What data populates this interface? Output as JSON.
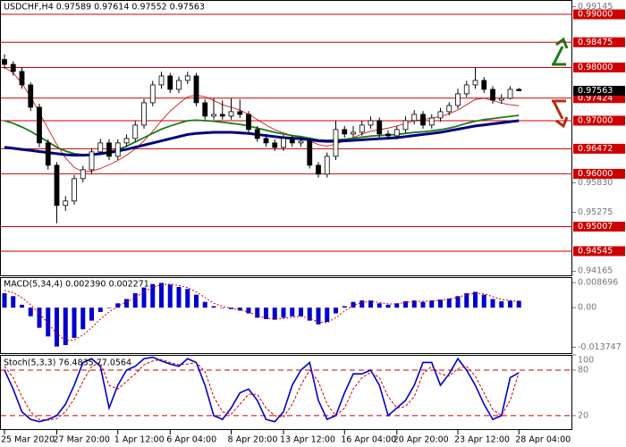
{
  "chart_data": [
    {
      "type": "candlestick",
      "title": "USDCHF,H4  0.97589 0.97614 0.97552 0.97563",
      "categories": [
        "25 Mar 2020",
        null,
        null,
        null,
        null,
        null,
        "27 Mar 20:00",
        null,
        null,
        null,
        null,
        null,
        null,
        "1 Apr 12:00",
        null,
        null,
        null,
        null,
        null,
        "6 Apr 04:00",
        null,
        null,
        null,
        null,
        null,
        null,
        "8 Apr 20:00",
        null,
        null,
        null,
        null,
        null,
        "13 Apr 12:00",
        null,
        null,
        null,
        null,
        null,
        null,
        "16 Apr 04:00",
        null,
        null,
        null,
        null,
        null,
        "20 Apr 20:00",
        null,
        null,
        null,
        null,
        null,
        null,
        "23 Apr 12:00",
        null,
        null,
        null,
        null,
        null,
        null,
        "28 Apr 04:00"
      ],
      "open": [
        0.9815,
        0.98059,
        0.97925,
        0.97673,
        0.97253,
        0.96581,
        0.96161,
        0.95405,
        0.95489,
        0.95909,
        0.96077,
        0.96413,
        0.96581,
        0.96329,
        0.96581,
        0.96665,
        0.96917,
        0.97337,
        0.97673,
        0.97841,
        0.97589,
        0.97757,
        0.97841,
        0.97337,
        0.97085,
        0.97118,
        0.97085,
        0.97169,
        0.97118,
        0.96833,
        0.96665,
        0.96581,
        0.96497,
        0.96665,
        0.96581,
        0.96614,
        0.96161,
        0.95993,
        0.96329,
        0.96833,
        0.96749,
        0.96782,
        0.96917,
        0.97001,
        0.96749,
        0.96715,
        0.96833,
        0.97001,
        0.97118,
        0.96917,
        0.97051,
        0.97169,
        0.97286,
        0.97505,
        0.97673,
        0.97757,
        0.97589,
        0.97387,
        0.97421,
        0.97589
      ],
      "high": [
        0.9825,
        0.9812,
        0.98,
        0.9772,
        0.9732,
        0.9665,
        0.9622,
        0.9558,
        0.9598,
        0.9615,
        0.9648,
        0.9666,
        0.9665,
        0.9665,
        0.9674,
        0.9699,
        0.9741,
        0.9775,
        0.9792,
        0.979,
        0.9783,
        0.9792,
        0.979,
        0.974,
        0.9742,
        0.9738,
        0.9742,
        0.974,
        0.9718,
        0.969,
        0.9673,
        0.9665,
        0.9673,
        0.9673,
        0.9669,
        0.9668,
        0.9622,
        0.964,
        0.97,
        0.969,
        0.969,
        0.97,
        0.9708,
        0.9706,
        0.9682,
        0.969,
        0.9708,
        0.972,
        0.9718,
        0.9712,
        0.9724,
        0.9735,
        0.976,
        0.9775,
        0.98,
        0.9782,
        0.9765,
        0.975,
        0.9765,
        0.97614
      ],
      "low": [
        0.9798,
        0.9785,
        0.976,
        0.9718,
        0.965,
        0.9608,
        0.9507,
        0.953,
        0.9542,
        0.9584,
        0.96,
        0.9635,
        0.9626,
        0.9626,
        0.9651,
        0.966,
        0.9685,
        0.9727,
        0.976,
        0.9752,
        0.9752,
        0.9769,
        0.9727,
        0.9702,
        0.9702,
        0.9702,
        0.9702,
        0.9705,
        0.9677,
        0.966,
        0.9651,
        0.9643,
        0.9643,
        0.9651,
        0.9651,
        0.961,
        0.9593,
        0.9593,
        0.9626,
        0.9668,
        0.9668,
        0.9672,
        0.9685,
        0.9668,
        0.9664,
        0.9665,
        0.9677,
        0.9693,
        0.9685,
        0.9685,
        0.9698,
        0.971,
        0.9722,
        0.9744,
        0.976,
        0.9752,
        0.9732,
        0.9732,
        0.974,
        0.97552
      ],
      "close": [
        0.98059,
        0.97925,
        0.97673,
        0.97253,
        0.96581,
        0.96161,
        0.95405,
        0.95489,
        0.95909,
        0.96077,
        0.96413,
        0.96581,
        0.96329,
        0.96581,
        0.96665,
        0.96917,
        0.97337,
        0.97673,
        0.97841,
        0.97589,
        0.97757,
        0.97841,
        0.97337,
        0.97085,
        0.97118,
        0.97085,
        0.97169,
        0.97118,
        0.96833,
        0.96665,
        0.96581,
        0.96497,
        0.96665,
        0.96581,
        0.96614,
        0.96161,
        0.95993,
        0.96329,
        0.96833,
        0.96749,
        0.96782,
        0.96917,
        0.97001,
        0.96749,
        0.96715,
        0.96833,
        0.97001,
        0.97118,
        0.96917,
        0.97051,
        0.97169,
        0.97286,
        0.97505,
        0.97673,
        0.97757,
        0.97589,
        0.97387,
        0.97421,
        0.97589,
        0.97563
      ],
      "up_color": "#ffffff",
      "down_color": "#000000",
      "edge_color": "#000000",
      "ma_lines": [
        {
          "color": "#cc0000",
          "width": 0.8,
          "values": [
            0.98,
            0.979,
            0.977,
            0.9745,
            0.9715,
            0.9685,
            0.9655,
            0.963,
            0.9612,
            0.9604,
            0.9605,
            0.961,
            0.9617,
            0.9625,
            0.9635,
            0.9647,
            0.9662,
            0.968,
            0.97,
            0.9718,
            0.9732,
            0.9745,
            0.9748,
            0.9745,
            0.9738,
            0.973,
            0.9725,
            0.972,
            0.9712,
            0.9702,
            0.9692,
            0.9683,
            0.9677,
            0.9672,
            0.9668,
            0.9662,
            0.9655,
            0.9652,
            0.9656,
            0.9662,
            0.9668,
            0.9675,
            0.968,
            0.9683,
            0.9686,
            0.969,
            0.9695,
            0.97,
            0.9702,
            0.9705,
            0.9708,
            0.9713,
            0.972,
            0.973,
            0.974,
            0.9742,
            0.9738,
            0.9733,
            0.973,
            0.9728
          ]
        },
        {
          "color": "#1a7a1a",
          "width": 1.8,
          "values": [
            0.97,
            0.9695,
            0.9688,
            0.968,
            0.967,
            0.966,
            0.965,
            0.9643,
            0.9638,
            0.9636,
            0.9636,
            0.9638,
            0.9642,
            0.9646,
            0.9652,
            0.966,
            0.9668,
            0.9676,
            0.9684,
            0.969,
            0.9695,
            0.97,
            0.9701,
            0.97,
            0.9699,
            0.9697,
            0.9695,
            0.9693,
            0.969,
            0.9686,
            0.9682,
            0.9678,
            0.9675,
            0.9672,
            0.967,
            0.9667,
            0.9664,
            0.9663,
            0.9664,
            0.9665,
            0.9667,
            0.9669,
            0.9671,
            0.9672,
            0.9673,
            0.9674,
            0.9676,
            0.9678,
            0.9679,
            0.9681,
            0.9683,
            0.9686,
            0.969,
            0.9695,
            0.9699,
            0.9702,
            0.9704,
            0.9706,
            0.9708,
            0.971
          ]
        },
        {
          "color": "#000080",
          "width": 3,
          "values": [
            0.965,
            0.9648,
            0.9646,
            0.9644,
            0.9642,
            0.964,
            0.9638,
            0.9636,
            0.9635,
            0.9635,
            0.9636,
            0.9638,
            0.964,
            0.9643,
            0.9646,
            0.965,
            0.9654,
            0.9658,
            0.9662,
            0.9666,
            0.967,
            0.9674,
            0.9676,
            0.9677,
            0.9678,
            0.9678,
            0.9678,
            0.9677,
            0.9676,
            0.9674,
            0.9672,
            0.967,
            0.9668,
            0.9667,
            0.9666,
            0.9664,
            0.9662,
            0.9661,
            0.9661,
            0.9662,
            0.9663,
            0.9664,
            0.9665,
            0.9666,
            0.9667,
            0.9668,
            0.967,
            0.9672,
            0.9674,
            0.9676,
            0.9678,
            0.9681,
            0.9684,
            0.9687,
            0.969,
            0.9692,
            0.9694,
            0.9696,
            0.9698,
            0.97
          ]
        }
      ],
      "levels": [
        {
          "value": 0.99,
          "label": "0.99000"
        },
        0.98475,
        {
          "value": 0.98,
          "label": "0.98000"
        },
        0.97424,
        {
          "value": 0.97,
          "label": "0.97000"
        },
        0.96472,
        {
          "value": 0.96,
          "label": "0.96000"
        },
        0.95007,
        0.94545
      ],
      "level_color": "#cc0000",
      "last_price": 0.97563,
      "ylim": [
        0.9409,
        0.9927
      ],
      "yticks": [
        0.99145,
        {
          "value": 0.9583,
          "label": "0.95830"
        },
        0.95275,
        0.94165
      ]
    },
    {
      "type": "macd",
      "title": "MACD(5,34,4) 0.002390 0.002271",
      "values": [
        0.005,
        0.004,
        0.001,
        -0.003,
        -0.007,
        -0.01,
        -0.0135,
        -0.013,
        -0.0105,
        -0.0075,
        -0.0045,
        -0.0015,
        0,
        0.0015,
        0.003,
        0.005,
        0.007,
        0.0082,
        0.0086,
        0.008,
        0.0072,
        0.0065,
        0.0045,
        0.002,
        0.0005,
        0,
        -0.0005,
        -0.001,
        -0.002,
        -0.0035,
        -0.004,
        -0.0042,
        -0.0035,
        -0.003,
        -0.003,
        -0.0045,
        -0.0058,
        -0.005,
        -0.002,
        0.0005,
        0.002,
        0.0025,
        0.0025,
        0.0015,
        0.001,
        0.0015,
        0.0022,
        0.0025,
        0.002,
        0.0025,
        0.0028,
        0.0032,
        0.004,
        0.005,
        0.0055,
        0.0045,
        0.003,
        0.0022,
        0.0024,
        0.00239
      ],
      "signal": [
        0.006,
        0.0052,
        0.0035,
        0.001,
        -0.002,
        -0.0055,
        -0.009,
        -0.0115,
        -0.0112,
        -0.0095,
        -0.007,
        -0.004,
        -0.0015,
        0.0005,
        0.002,
        0.0035,
        0.0055,
        0.007,
        0.008,
        0.0082,
        0.0077,
        0.007,
        0.0055,
        0.0035,
        0.0015,
        0.0005,
        -0.0002,
        -0.0008,
        -0.0015,
        -0.0028,
        -0.0036,
        -0.004,
        -0.0038,
        -0.0033,
        -0.003,
        -0.0038,
        -0.005,
        -0.0052,
        -0.0035,
        -0.0012,
        0.0008,
        0.0018,
        0.0022,
        0.0018,
        0.0013,
        0.0013,
        0.0018,
        0.0022,
        0.0022,
        0.0023,
        0.0026,
        0.003,
        0.0036,
        0.0045,
        0.005,
        0.0048,
        0.0038,
        0.0028,
        0.0025,
        0.002271
      ],
      "color": "#0000cc",
      "signal_color": "#cc0000",
      "ylim": [
        -0.0158,
        0.0106
      ],
      "yticks": [
        0.008696,
        {
          "value": 0,
          "label": "0.00"
        },
        -0.013747
      ]
    },
    {
      "type": "stochastic",
      "title": "Stoch(5,3,3) 76.4835 77.0564",
      "main": [
        80,
        55,
        25,
        15,
        12,
        15,
        20,
        35,
        60,
        90,
        95,
        85,
        30,
        60,
        80,
        85,
        95,
        97,
        92,
        88,
        85,
        95,
        90,
        60,
        20,
        15,
        30,
        50,
        55,
        40,
        15,
        12,
        25,
        60,
        80,
        90,
        40,
        15,
        20,
        50,
        75,
        75,
        80,
        60,
        20,
        30,
        40,
        60,
        90,
        90,
        60,
        75,
        95,
        80,
        60,
        35,
        15,
        20,
        70,
        76.4835
      ],
      "signal": [
        85,
        70,
        45,
        25,
        15,
        14,
        16,
        25,
        42,
        65,
        85,
        90,
        60,
        55,
        65,
        75,
        87,
        92,
        94,
        90,
        87,
        88,
        90,
        78,
        45,
        25,
        22,
        35,
        48,
        48,
        30,
        20,
        18,
        35,
        60,
        80,
        65,
        35,
        20,
        30,
        55,
        70,
        77,
        70,
        45,
        30,
        32,
        45,
        75,
        85,
        75,
        72,
        82,
        85,
        72,
        50,
        28,
        20,
        40,
        77.0564
      ],
      "color": "#0000cc",
      "signal_color": "#cc0000",
      "levels": [
        80,
        20
      ],
      "ylim": [
        1,
        100
      ],
      "yticks": [
        100,
        80,
        20
      ]
    }
  ]
}
